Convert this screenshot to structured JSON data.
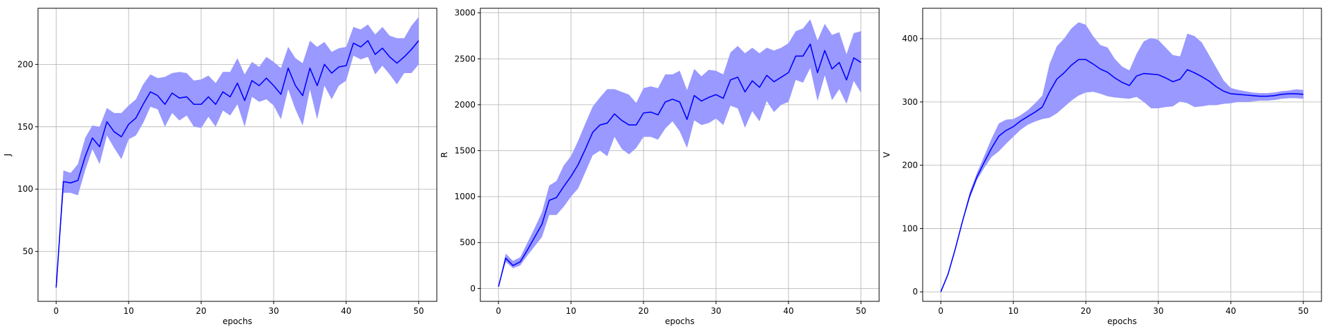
{
  "chart_data": [
    {
      "type": "line",
      "xlabel": "epochs",
      "ylabel": "J",
      "xlim": [
        -2.5,
        52.5
      ],
      "ylim": [
        10,
        245
      ],
      "xticks": [
        0,
        10,
        20,
        30,
        40,
        50
      ],
      "yticks": [
        50,
        100,
        150,
        200
      ],
      "grid": true,
      "colors": {
        "line": "#0000ff",
        "band": "#9999ff"
      },
      "series": [
        {
          "x": [
            0,
            1,
            2,
            3,
            4,
            5,
            6,
            7,
            8,
            9,
            10,
            11,
            12,
            13,
            14,
            15,
            16,
            17,
            18,
            19,
            20,
            21,
            22,
            23,
            24,
            25,
            26,
            27,
            28,
            29,
            30,
            31,
            32,
            33,
            34,
            35,
            36,
            37,
            38,
            39,
            40,
            41,
            42,
            43,
            44,
            45,
            46,
            47,
            48,
            49,
            50
          ],
          "mean": [
            21,
            106,
            105,
            107,
            126,
            141,
            134,
            154,
            146,
            142,
            152,
            157,
            168,
            178,
            175,
            168,
            177,
            173,
            174,
            168,
            168,
            174,
            168,
            178,
            174,
            185,
            171,
            187,
            183,
            189,
            183,
            176,
            197,
            183,
            175,
            197,
            183,
            200,
            193,
            198,
            199,
            217,
            214,
            219,
            208,
            213,
            206,
            201,
            206,
            212,
            219
          ],
          "upper": [
            21,
            115,
            113,
            120,
            141,
            151,
            150,
            165,
            161,
            161,
            167,
            172,
            184,
            192,
            189,
            190,
            193,
            194,
            193,
            187,
            188,
            191,
            185,
            194,
            194,
            205,
            192,
            202,
            198,
            206,
            202,
            197,
            214,
            205,
            201,
            219,
            214,
            218,
            210,
            213,
            214,
            230,
            228,
            232,
            224,
            230,
            223,
            221,
            221,
            231,
            238
          ],
          "lower": [
            21,
            97,
            97,
            95,
            115,
            132,
            120,
            143,
            133,
            124,
            140,
            143,
            153,
            166,
            164,
            150,
            161,
            155,
            159,
            150,
            149,
            158,
            150,
            163,
            159,
            168,
            150,
            174,
            170,
            172,
            167,
            156,
            180,
            164,
            151,
            180,
            156,
            183,
            172,
            183,
            187,
            207,
            204,
            206,
            192,
            199,
            192,
            184,
            193,
            193,
            200
          ]
        }
      ]
    },
    {
      "type": "line",
      "xlabel": "epochs",
      "ylabel": "R",
      "xlim": [
        -2.5,
        52.5
      ],
      "ylim": [
        -140,
        3050
      ],
      "xticks": [
        0,
        10,
        20,
        30,
        40,
        50
      ],
      "yticks": [
        0,
        500,
        1000,
        1500,
        2000,
        2500,
        3000
      ],
      "grid": true,
      "colors": {
        "line": "#0000ff",
        "band": "#9999ff"
      },
      "series": [
        {
          "x": [
            0,
            1,
            2,
            3,
            4,
            5,
            6,
            7,
            8,
            9,
            10,
            11,
            12,
            13,
            14,
            15,
            16,
            17,
            18,
            19,
            20,
            21,
            22,
            23,
            24,
            25,
            26,
            27,
            28,
            29,
            30,
            31,
            32,
            33,
            34,
            35,
            36,
            37,
            38,
            39,
            40,
            41,
            42,
            43,
            44,
            45,
            46,
            47,
            48,
            49,
            50
          ],
          "mean": [
            20,
            330,
            250,
            290,
            420,
            560,
            700,
            960,
            990,
            1110,
            1220,
            1350,
            1520,
            1700,
            1780,
            1800,
            1900,
            1830,
            1780,
            1780,
            1910,
            1920,
            1890,
            2030,
            2060,
            2030,
            1840,
            2100,
            2040,
            2080,
            2110,
            2070,
            2270,
            2300,
            2140,
            2260,
            2190,
            2320,
            2250,
            2300,
            2350,
            2530,
            2530,
            2660,
            2350,
            2590,
            2390,
            2460,
            2270,
            2510,
            2460
          ],
          "upper": [
            20,
            380,
            300,
            340,
            500,
            660,
            830,
            1120,
            1170,
            1340,
            1440,
            1610,
            1800,
            1980,
            2080,
            2170,
            2170,
            2140,
            2110,
            2020,
            2180,
            2200,
            2180,
            2330,
            2330,
            2370,
            2160,
            2390,
            2310,
            2380,
            2370,
            2330,
            2570,
            2640,
            2560,
            2620,
            2560,
            2620,
            2590,
            2620,
            2670,
            2800,
            2830,
            2930,
            2700,
            2880,
            2760,
            2790,
            2550,
            2780,
            2800
          ],
          "lower": [
            20,
            290,
            220,
            250,
            360,
            460,
            560,
            800,
            800,
            890,
            1000,
            1090,
            1270,
            1450,
            1500,
            1440,
            1650,
            1520,
            1460,
            1530,
            1650,
            1650,
            1620,
            1740,
            1820,
            1710,
            1530,
            1830,
            1780,
            1800,
            1850,
            1780,
            1990,
            1960,
            1750,
            1930,
            1820,
            2040,
            1920,
            2000,
            2030,
            2270,
            2240,
            2400,
            2040,
            2320,
            2050,
            2170,
            2010,
            2260,
            2130
          ]
        }
      ]
    },
    {
      "type": "line",
      "xlabel": "epochs",
      "ylabel": "V",
      "xlim": [
        -2.5,
        52.5
      ],
      "ylim": [
        -15,
        448
      ],
      "xticks": [
        0,
        10,
        20,
        30,
        40,
        50
      ],
      "yticks": [
        0,
        100,
        200,
        300,
        400
      ],
      "grid": true,
      "colors": {
        "line": "#0000ff",
        "band": "#9999ff"
      },
      "series": [
        {
          "x": [
            0,
            1,
            2,
            3,
            4,
            5,
            6,
            7,
            8,
            9,
            10,
            11,
            12,
            13,
            14,
            15,
            16,
            17,
            18,
            19,
            20,
            21,
            22,
            23,
            24,
            25,
            26,
            27,
            28,
            29,
            30,
            31,
            32,
            33,
            34,
            35,
            36,
            37,
            38,
            39,
            40,
            41,
            42,
            43,
            44,
            45,
            46,
            47,
            48,
            49,
            50
          ],
          "mean": [
            0,
            28,
            68,
            112,
            152,
            182,
            205,
            227,
            246,
            255,
            261,
            270,
            277,
            284,
            292,
            316,
            336,
            346,
            358,
            367,
            367,
            360,
            352,
            347,
            338,
            331,
            326,
            341,
            345,
            344,
            343,
            338,
            332,
            336,
            351,
            346,
            340,
            333,
            324,
            317,
            313,
            312,
            311,
            310,
            309,
            309,
            310,
            312,
            313,
            313,
            312
          ],
          "upper": [
            0,
            28,
            70,
            114,
            158,
            188,
            215,
            242,
            266,
            272,
            273,
            279,
            287,
            298,
            310,
            360,
            388,
            400,
            416,
            426,
            422,
            404,
            390,
            386,
            368,
            356,
            350,
            376,
            396,
            401,
            398,
            386,
            374,
            372,
            408,
            404,
            394,
            374,
            354,
            334,
            322,
            319,
            317,
            315,
            314,
            314,
            315,
            317,
            318,
            320,
            319
          ],
          "lower": [
            0,
            28,
            66,
            110,
            148,
            177,
            196,
            213,
            222,
            234,
            245,
            256,
            264,
            269,
            273,
            275,
            282,
            292,
            302,
            310,
            315,
            316,
            313,
            309,
            307,
            306,
            305,
            308,
            300,
            290,
            290,
            292,
            293,
            301,
            298,
            292,
            293,
            295,
            295,
            297,
            298,
            300,
            300,
            301,
            302,
            302,
            303,
            305,
            306,
            306,
            305
          ]
        }
      ]
    }
  ]
}
